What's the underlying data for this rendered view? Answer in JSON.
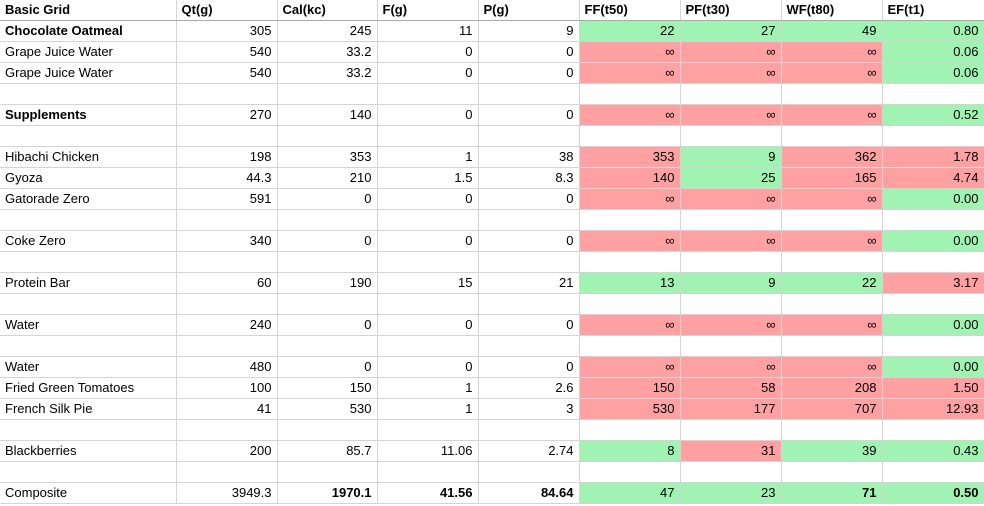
{
  "colors": {
    "pass_bg": "#a1f3b3",
    "fail_bg": "#ffa1a3"
  },
  "grid": {
    "corner_label": "Basic Grid",
    "columns": [
      "Qt(g)",
      "Cal(kc)",
      "F(g)",
      "P(g)",
      "FF(t50)",
      "PF(t30)",
      "WF(t80)",
      "EF(t1)"
    ],
    "rows": [
      {
        "label": "Chocolate Oatmeal",
        "labelBold": true,
        "cells": [
          {
            "v": "305"
          },
          {
            "v": "245"
          },
          {
            "v": "11"
          },
          {
            "v": "9"
          },
          {
            "v": "22",
            "bg": "pass"
          },
          {
            "v": "27",
            "bg": "pass"
          },
          {
            "v": "49",
            "bg": "pass"
          },
          {
            "v": "0.80",
            "bg": "pass"
          }
        ]
      },
      {
        "label": "Grape Juice Water",
        "cells": [
          {
            "v": "540"
          },
          {
            "v": "33.2"
          },
          {
            "v": "0"
          },
          {
            "v": "0"
          },
          {
            "v": "∞",
            "bg": "fail"
          },
          {
            "v": "∞",
            "bg": "fail"
          },
          {
            "v": "∞",
            "bg": "fail"
          },
          {
            "v": "0.06",
            "bg": "pass"
          }
        ]
      },
      {
        "label": "Grape Juice Water",
        "cells": [
          {
            "v": "540"
          },
          {
            "v": "33.2"
          },
          {
            "v": "0"
          },
          {
            "v": "0"
          },
          {
            "v": "∞",
            "bg": "fail"
          },
          {
            "v": "∞",
            "bg": "fail"
          },
          {
            "v": "∞",
            "bg": "fail"
          },
          {
            "v": "0.06",
            "bg": "pass"
          }
        ]
      },
      {
        "label": "",
        "cells": []
      },
      {
        "label": "Supplements",
        "labelBold": true,
        "cells": [
          {
            "v": "270"
          },
          {
            "v": "140"
          },
          {
            "v": "0"
          },
          {
            "v": "0"
          },
          {
            "v": "∞",
            "bg": "fail"
          },
          {
            "v": "∞",
            "bg": "fail"
          },
          {
            "v": "∞",
            "bg": "fail"
          },
          {
            "v": "0.52",
            "bg": "pass"
          }
        ]
      },
      {
        "label": "",
        "cells": []
      },
      {
        "label": "Hibachi Chicken",
        "cells": [
          {
            "v": "198"
          },
          {
            "v": "353"
          },
          {
            "v": "1"
          },
          {
            "v": "38"
          },
          {
            "v": "353",
            "bg": "fail"
          },
          {
            "v": "9",
            "bg": "pass"
          },
          {
            "v": "362",
            "bg": "fail"
          },
          {
            "v": "1.78",
            "bg": "fail"
          }
        ]
      },
      {
        "label": "Gyoza",
        "cells": [
          {
            "v": "44.3"
          },
          {
            "v": "210"
          },
          {
            "v": "1.5"
          },
          {
            "v": "8.3"
          },
          {
            "v": "140",
            "bg": "fail"
          },
          {
            "v": "25",
            "bg": "pass"
          },
          {
            "v": "165",
            "bg": "fail"
          },
          {
            "v": "4.74",
            "bg": "fail"
          }
        ]
      },
      {
        "label": "Gatorade Zero",
        "cells": [
          {
            "v": "591"
          },
          {
            "v": "0"
          },
          {
            "v": "0"
          },
          {
            "v": "0"
          },
          {
            "v": "∞",
            "bg": "fail"
          },
          {
            "v": "∞",
            "bg": "fail"
          },
          {
            "v": "∞",
            "bg": "fail"
          },
          {
            "v": "0.00",
            "bg": "pass"
          }
        ]
      },
      {
        "label": "",
        "cells": []
      },
      {
        "label": "Coke Zero",
        "cells": [
          {
            "v": "340"
          },
          {
            "v": "0"
          },
          {
            "v": "0"
          },
          {
            "v": "0"
          },
          {
            "v": "∞",
            "bg": "fail"
          },
          {
            "v": "∞",
            "bg": "fail"
          },
          {
            "v": "∞",
            "bg": "fail"
          },
          {
            "v": "0.00",
            "bg": "pass"
          }
        ]
      },
      {
        "label": "",
        "cells": []
      },
      {
        "label": "Protein Bar",
        "cells": [
          {
            "v": "60"
          },
          {
            "v": "190"
          },
          {
            "v": "15"
          },
          {
            "v": "21"
          },
          {
            "v": "13",
            "bg": "pass"
          },
          {
            "v": "9",
            "bg": "pass"
          },
          {
            "v": "22",
            "bg": "pass"
          },
          {
            "v": "3.17",
            "bg": "fail"
          }
        ]
      },
      {
        "label": "",
        "cells": []
      },
      {
        "label": "Water",
        "cells": [
          {
            "v": "240"
          },
          {
            "v": "0"
          },
          {
            "v": "0"
          },
          {
            "v": "0"
          },
          {
            "v": "∞",
            "bg": "fail"
          },
          {
            "v": "∞",
            "bg": "fail"
          },
          {
            "v": "∞",
            "bg": "fail"
          },
          {
            "v": "0.00",
            "bg": "pass"
          }
        ]
      },
      {
        "label": "",
        "cells": []
      },
      {
        "label": "Water",
        "cells": [
          {
            "v": "480"
          },
          {
            "v": "0"
          },
          {
            "v": "0"
          },
          {
            "v": "0"
          },
          {
            "v": "∞",
            "bg": "fail"
          },
          {
            "v": "∞",
            "bg": "fail"
          },
          {
            "v": "∞",
            "bg": "fail"
          },
          {
            "v": "0.00",
            "bg": "pass"
          }
        ]
      },
      {
        "label": "Fried Green Tomatoes",
        "cells": [
          {
            "v": "100"
          },
          {
            "v": "150"
          },
          {
            "v": "1"
          },
          {
            "v": "2.6"
          },
          {
            "v": "150",
            "bg": "fail"
          },
          {
            "v": "58",
            "bg": "fail"
          },
          {
            "v": "208",
            "bg": "fail"
          },
          {
            "v": "1.50",
            "bg": "fail"
          }
        ]
      },
      {
        "label": "French Silk Pie",
        "cells": [
          {
            "v": "41"
          },
          {
            "v": "530"
          },
          {
            "v": "1"
          },
          {
            "v": "3"
          },
          {
            "v": "530",
            "bg": "fail"
          },
          {
            "v": "177",
            "bg": "fail"
          },
          {
            "v": "707",
            "bg": "fail"
          },
          {
            "v": "12.93",
            "bg": "fail"
          }
        ]
      },
      {
        "label": "",
        "cells": []
      },
      {
        "label": "Blackberries",
        "cells": [
          {
            "v": "200"
          },
          {
            "v": "85.7"
          },
          {
            "v": "11.06"
          },
          {
            "v": "2.74"
          },
          {
            "v": "8",
            "bg": "pass"
          },
          {
            "v": "31",
            "bg": "fail"
          },
          {
            "v": "39",
            "bg": "pass"
          },
          {
            "v": "0.43",
            "bg": "pass"
          }
        ]
      },
      {
        "label": "",
        "cells": []
      },
      {
        "label": "Composite",
        "cells": [
          {
            "v": "3949.3"
          },
          {
            "v": "1970.1",
            "b": true
          },
          {
            "v": "41.56",
            "b": true
          },
          {
            "v": "84.64",
            "b": true
          },
          {
            "v": "47",
            "bg": "pass"
          },
          {
            "v": "23",
            "bg": "pass"
          },
          {
            "v": "71",
            "bg": "pass",
            "b": true
          },
          {
            "v": "0.50",
            "bg": "pass",
            "b": true
          }
        ]
      }
    ]
  }
}
